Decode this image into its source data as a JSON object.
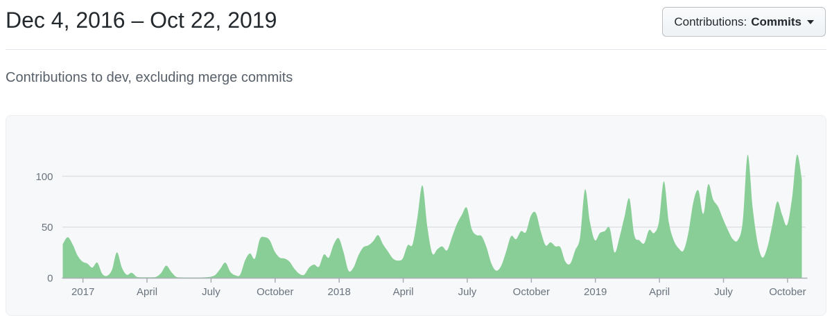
{
  "header": {
    "title": "Dec 4, 2016 – Oct 22, 2019",
    "filter": {
      "label": "Contributions:",
      "value": "Commits"
    }
  },
  "subtitle": "Contributions to dev, excluding merge commits",
  "icons": {
    "caret_down": "triangle-down"
  },
  "colors": {
    "area_fill": "#89ce97",
    "grid_line": "#dfe2e5",
    "axis_line": "#a8aeb4",
    "axis_label": "#6a737d",
    "panel_bg": "#f6f8fa",
    "title_text": "#24292e",
    "muted_text": "#586069"
  },
  "chart_data": {
    "type": "area",
    "title": "Commits per week to dev",
    "x_range_label": [
      "Dec 4, 2016",
      "Oct 22, 2019"
    ],
    "x_unit": "week",
    "ylim": [
      0,
      125
    ],
    "yticks": [
      0,
      50,
      100
    ],
    "grid": "horizontal",
    "legend": "none",
    "xticks": {
      "labels": [
        "2017",
        "April",
        "July",
        "October",
        "2018",
        "April",
        "July",
        "October",
        "2019",
        "April",
        "July",
        "October"
      ],
      "week_positions": [
        4.1,
        17.1,
        30.1,
        43.1,
        56.1,
        69.1,
        82.1,
        95.1,
        108.1,
        121.1,
        134.1,
        147.1
      ]
    },
    "series": [
      {
        "name": "Commits",
        "values": [
          33,
          40,
          33,
          22,
          16,
          14,
          10,
          15,
          4,
          2,
          8,
          25,
          10,
          3,
          5,
          1,
          0.5,
          0.5,
          0.5,
          1,
          5,
          12,
          6,
          1,
          0.4,
          0.3,
          0.3,
          0.3,
          0.3,
          0.5,
          1,
          3,
          9,
          15,
          6,
          2.5,
          3,
          17,
          24,
          19,
          38,
          40,
          37,
          26,
          20,
          19,
          16,
          9,
          4,
          3,
          10,
          13,
          11,
          23,
          20,
          33,
          39,
          25,
          7,
          10,
          22,
          30,
          32,
          36,
          42,
          33,
          26,
          19,
          17,
          19,
          32,
          33,
          60,
          91,
          50,
          24,
          28,
          31,
          27,
          40,
          53,
          62,
          69,
          48,
          42,
          41,
          30,
          14,
          7,
          12,
          26,
          41,
          38,
          46,
          45,
          61,
          64,
          46,
          32,
          35,
          31,
          30,
          16,
          14,
          27,
          40,
          87,
          55,
          37,
          44,
          46,
          49,
          25,
          40,
          60,
          78,
          42,
          37,
          34,
          47,
          44,
          55,
          95,
          55,
          37,
          29,
          27,
          45,
          75,
          86,
          63,
          92,
          77,
          70,
          58,
          47,
          38,
          37,
          55,
          121,
          70,
          35,
          20,
          30,
          52,
          75,
          62,
          52,
          78,
          121,
          97
        ]
      }
    ]
  }
}
